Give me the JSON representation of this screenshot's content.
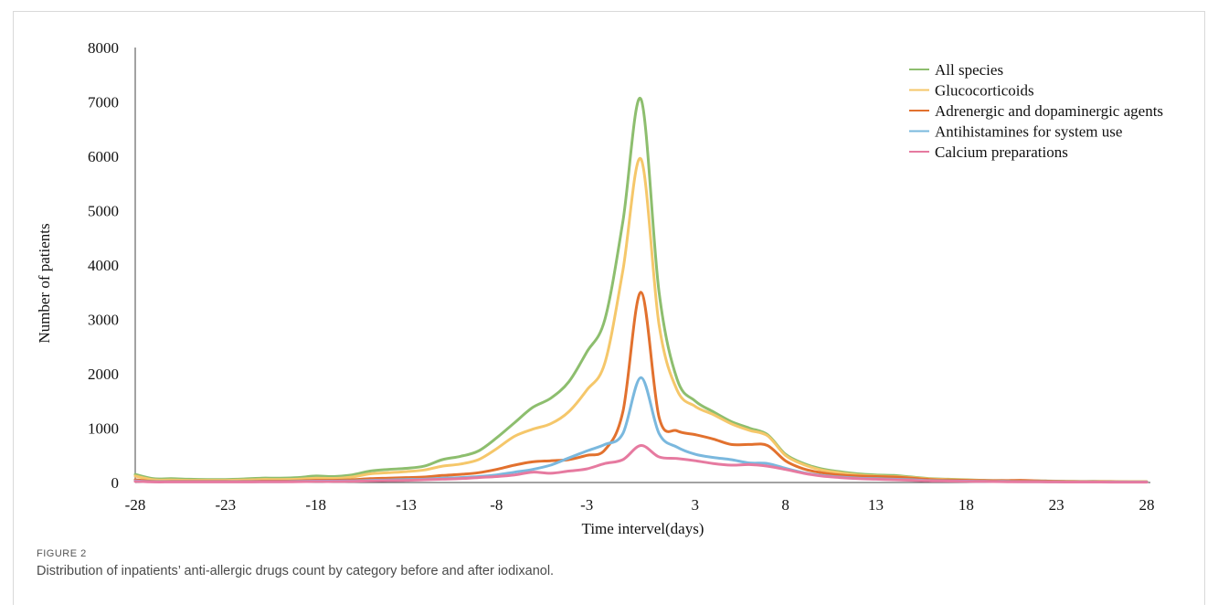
{
  "figure": {
    "label": "FIGURE 2",
    "caption": "Distribution of inpatients’ anti-allergic drugs count by category before and after iodixanol."
  },
  "chart_data": {
    "type": "line",
    "xlabel": "Time intervel(days)",
    "ylabel": "Number of patients",
    "xlim": [
      -28,
      28
    ],
    "ylim": [
      0,
      8000
    ],
    "xticks": [
      -28,
      -23,
      -18,
      -13,
      -8,
      -3,
      3,
      8,
      13,
      18,
      23,
      28
    ],
    "yticks": [
      0,
      1000,
      2000,
      3000,
      4000,
      5000,
      6000,
      7000,
      8000
    ],
    "grid": false,
    "legend_position": "top-right",
    "series": [
      {
        "name": "All species",
        "color": "#8dbe6e",
        "points": [
          [
            -28,
            150
          ],
          [
            -27,
            70
          ],
          [
            -26,
            70
          ],
          [
            -25,
            60
          ],
          [
            -24,
            55
          ],
          [
            -23,
            55
          ],
          [
            -22,
            65
          ],
          [
            -21,
            80
          ],
          [
            -20,
            80
          ],
          [
            -19,
            90
          ],
          [
            -18,
            120
          ],
          [
            -17,
            110
          ],
          [
            -16,
            140
          ],
          [
            -15,
            210
          ],
          [
            -14,
            240
          ],
          [
            -13,
            260
          ],
          [
            -12,
            300
          ],
          [
            -11,
            420
          ],
          [
            -10,
            480
          ],
          [
            -9,
            580
          ],
          [
            -8,
            820
          ],
          [
            -7,
            1100
          ],
          [
            -6,
            1380
          ],
          [
            -5,
            1550
          ],
          [
            -4,
            1850
          ],
          [
            -3,
            2400
          ],
          [
            -2,
            3000
          ],
          [
            -1,
            4800
          ],
          [
            0,
            7050
          ],
          [
            1,
            3500
          ],
          [
            2,
            1900
          ],
          [
            3,
            1500
          ],
          [
            4,
            1300
          ],
          [
            5,
            1120
          ],
          [
            6,
            1000
          ],
          [
            7,
            880
          ],
          [
            8,
            520
          ],
          [
            9,
            350
          ],
          [
            10,
            250
          ],
          [
            11,
            200
          ],
          [
            12,
            160
          ],
          [
            13,
            140
          ],
          [
            14,
            130
          ],
          [
            15,
            100
          ],
          [
            16,
            70
          ],
          [
            17,
            60
          ],
          [
            18,
            50
          ],
          [
            19,
            40
          ],
          [
            20,
            35
          ],
          [
            21,
            30
          ],
          [
            22,
            30
          ],
          [
            23,
            25
          ],
          [
            24,
            20
          ],
          [
            25,
            20
          ],
          [
            26,
            18
          ],
          [
            27,
            15
          ],
          [
            28,
            15
          ]
        ]
      },
      {
        "name": "Glucocorticoids",
        "color": "#f5c76a",
        "points": [
          [
            -28,
            120
          ],
          [
            -27,
            50
          ],
          [
            -26,
            45
          ],
          [
            -25,
            40
          ],
          [
            -24,
            40
          ],
          [
            -23,
            40
          ],
          [
            -22,
            45
          ],
          [
            -21,
            55
          ],
          [
            -20,
            55
          ],
          [
            -19,
            60
          ],
          [
            -18,
            80
          ],
          [
            -17,
            75
          ],
          [
            -16,
            100
          ],
          [
            -15,
            160
          ],
          [
            -14,
            180
          ],
          [
            -13,
            200
          ],
          [
            -12,
            230
          ],
          [
            -11,
            300
          ],
          [
            -10,
            340
          ],
          [
            -9,
            420
          ],
          [
            -8,
            620
          ],
          [
            -7,
            850
          ],
          [
            -6,
            980
          ],
          [
            -5,
            1080
          ],
          [
            -4,
            1300
          ],
          [
            -3,
            1700
          ],
          [
            -2,
            2200
          ],
          [
            -1,
            3900
          ],
          [
            0,
            5950
          ],
          [
            1,
            2900
          ],
          [
            2,
            1700
          ],
          [
            3,
            1400
          ],
          [
            4,
            1250
          ],
          [
            5,
            1080
          ],
          [
            6,
            960
          ],
          [
            7,
            860
          ],
          [
            8,
            500
          ],
          [
            9,
            330
          ],
          [
            10,
            230
          ],
          [
            11,
            180
          ],
          [
            12,
            140
          ],
          [
            13,
            120
          ],
          [
            14,
            110
          ],
          [
            15,
            90
          ],
          [
            16,
            65
          ],
          [
            17,
            55
          ],
          [
            18,
            45
          ],
          [
            19,
            35
          ],
          [
            20,
            30
          ],
          [
            21,
            25
          ],
          [
            22,
            25
          ],
          [
            23,
            20
          ],
          [
            24,
            18
          ],
          [
            25,
            15
          ],
          [
            26,
            15
          ],
          [
            27,
            12
          ],
          [
            28,
            12
          ]
        ]
      },
      {
        "name": "Adrenergic and dopaminergic agents",
        "color": "#e2712e",
        "points": [
          [
            -28,
            50
          ],
          [
            -27,
            20
          ],
          [
            -26,
            20
          ],
          [
            -25,
            20
          ],
          [
            -24,
            20
          ],
          [
            -23,
            20
          ],
          [
            -22,
            20
          ],
          [
            -21,
            25
          ],
          [
            -20,
            25
          ],
          [
            -19,
            30
          ],
          [
            -18,
            40
          ],
          [
            -17,
            40
          ],
          [
            -16,
            50
          ],
          [
            -15,
            70
          ],
          [
            -14,
            80
          ],
          [
            -13,
            90
          ],
          [
            -12,
            100
          ],
          [
            -11,
            130
          ],
          [
            -10,
            150
          ],
          [
            -9,
            180
          ],
          [
            -8,
            240
          ],
          [
            -7,
            320
          ],
          [
            -6,
            380
          ],
          [
            -5,
            400
          ],
          [
            -4,
            420
          ],
          [
            -3,
            500
          ],
          [
            -2,
            600
          ],
          [
            -1,
            1300
          ],
          [
            0,
            3500
          ],
          [
            1,
            1200
          ],
          [
            2,
            950
          ],
          [
            3,
            880
          ],
          [
            4,
            800
          ],
          [
            5,
            700
          ],
          [
            6,
            700
          ],
          [
            7,
            680
          ],
          [
            8,
            400
          ],
          [
            9,
            250
          ],
          [
            10,
            180
          ],
          [
            11,
            140
          ],
          [
            12,
            120
          ],
          [
            13,
            110
          ],
          [
            14,
            100
          ],
          [
            15,
            80
          ],
          [
            16,
            55
          ],
          [
            17,
            45
          ],
          [
            18,
            40
          ],
          [
            19,
            35
          ],
          [
            20,
            35
          ],
          [
            21,
            40
          ],
          [
            22,
            30
          ],
          [
            23,
            20
          ],
          [
            24,
            15
          ],
          [
            25,
            15
          ],
          [
            26,
            12
          ],
          [
            27,
            10
          ],
          [
            28,
            10
          ]
        ]
      },
      {
        "name": "Antihistamines for system use",
        "color": "#7ab8de",
        "points": [
          [
            -28,
            30
          ],
          [
            -27,
            15
          ],
          [
            -26,
            15
          ],
          [
            -25,
            15
          ],
          [
            -24,
            15
          ],
          [
            -23,
            15
          ],
          [
            -22,
            15
          ],
          [
            -21,
            15
          ],
          [
            -20,
            15
          ],
          [
            -19,
            20
          ],
          [
            -18,
            25
          ],
          [
            -17,
            25
          ],
          [
            -16,
            30
          ],
          [
            -15,
            40
          ],
          [
            -14,
            45
          ],
          [
            -13,
            55
          ],
          [
            -12,
            60
          ],
          [
            -11,
            80
          ],
          [
            -10,
            90
          ],
          [
            -9,
            110
          ],
          [
            -8,
            140
          ],
          [
            -7,
            190
          ],
          [
            -6,
            240
          ],
          [
            -5,
            320
          ],
          [
            -4,
            450
          ],
          [
            -3,
            580
          ],
          [
            -2,
            700
          ],
          [
            -1,
            900
          ],
          [
            0,
            1930
          ],
          [
            1,
            900
          ],
          [
            2,
            650
          ],
          [
            3,
            520
          ],
          [
            4,
            460
          ],
          [
            5,
            420
          ],
          [
            6,
            360
          ],
          [
            7,
            350
          ],
          [
            8,
            260
          ],
          [
            9,
            180
          ],
          [
            10,
            130
          ],
          [
            11,
            100
          ],
          [
            12,
            80
          ],
          [
            13,
            70
          ],
          [
            14,
            60
          ],
          [
            15,
            50
          ],
          [
            16,
            35
          ],
          [
            17,
            30
          ],
          [
            18,
            25
          ],
          [
            19,
            20
          ],
          [
            20,
            20
          ],
          [
            21,
            15
          ],
          [
            22,
            15
          ],
          [
            23,
            12
          ],
          [
            24,
            10
          ],
          [
            25,
            10
          ],
          [
            26,
            8
          ],
          [
            27,
            8
          ],
          [
            28,
            8
          ]
        ]
      },
      {
        "name": "Calcium preparations",
        "color": "#e67aa0",
        "points": [
          [
            -28,
            20
          ],
          [
            -27,
            10
          ],
          [
            -26,
            10
          ],
          [
            -25,
            10
          ],
          [
            -24,
            10
          ],
          [
            -23,
            10
          ],
          [
            -22,
            10
          ],
          [
            -21,
            12
          ],
          [
            -20,
            12
          ],
          [
            -19,
            15
          ],
          [
            -18,
            18
          ],
          [
            -17,
            18
          ],
          [
            -16,
            22
          ],
          [
            -15,
            30
          ],
          [
            -14,
            35
          ],
          [
            -13,
            40
          ],
          [
            -12,
            50
          ],
          [
            -11,
            60
          ],
          [
            -10,
            70
          ],
          [
            -9,
            90
          ],
          [
            -8,
            110
          ],
          [
            -7,
            140
          ],
          [
            -6,
            190
          ],
          [
            -5,
            170
          ],
          [
            -4,
            210
          ],
          [
            -3,
            250
          ],
          [
            -2,
            350
          ],
          [
            -1,
            420
          ],
          [
            0,
            680
          ],
          [
            1,
            470
          ],
          [
            2,
            440
          ],
          [
            3,
            400
          ],
          [
            4,
            350
          ],
          [
            5,
            320
          ],
          [
            6,
            330
          ],
          [
            7,
            300
          ],
          [
            8,
            240
          ],
          [
            9,
            170
          ],
          [
            10,
            120
          ],
          [
            11,
            90
          ],
          [
            12,
            70
          ],
          [
            13,
            60
          ],
          [
            14,
            50
          ],
          [
            15,
            40
          ],
          [
            16,
            30
          ],
          [
            17,
            25
          ],
          [
            18,
            20
          ],
          [
            19,
            18
          ],
          [
            20,
            15
          ],
          [
            21,
            12
          ],
          [
            22,
            12
          ],
          [
            23,
            10
          ],
          [
            24,
            8
          ],
          [
            25,
            8
          ],
          [
            26,
            6
          ],
          [
            27,
            6
          ],
          [
            28,
            6
          ]
        ]
      }
    ]
  }
}
